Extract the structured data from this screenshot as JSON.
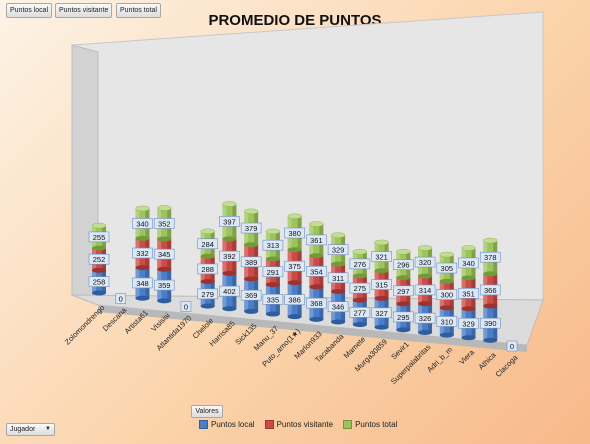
{
  "toolbar": {
    "btn_local": "Puntos local",
    "btn_visitante": "Puntos visitante",
    "btn_total": "Puntos total"
  },
  "pivot": {
    "valores_label": "Valores",
    "jugador_label": "Jugador"
  },
  "colors": {
    "local": "#4a7ec9",
    "visitante": "#cc4b47",
    "total": "#9dc45a"
  },
  "chart_data": {
    "type": "bar",
    "stacked": true,
    "style": "3d-cylinder",
    "title": "PROMEDIO DE PUNTOS",
    "xlabel": "",
    "ylabel": "",
    "legend_position": "bottom",
    "categories": [
      "Zolomondrengo",
      "Descana",
      "Artista61",
      "Visisisi",
      "Atlantida1970",
      "Chelole",
      "Harrisa85",
      "Sick135",
      "Manu_37",
      "Puto_amo(1★)",
      "Marlon933",
      "Tacabanda",
      "Mamete",
      "Murga30859",
      "Sevir1",
      "Superpalabritas",
      "Adri_b_m",
      "Viera",
      "Athica",
      "Clacoga"
    ],
    "series": [
      {
        "name": "Puntos local",
        "values": [
          258,
          0,
          348,
          359,
          0,
          279,
          402,
          369,
          335,
          386,
          368,
          346,
          277,
          327,
          295,
          326,
          310,
          329,
          390,
          0
        ]
      },
      {
        "name": "Puntos visitante",
        "values": [
          252,
          0,
          332,
          345,
          0,
          288,
          392,
          389,
          291,
          375,
          354,
          311,
          275,
          315,
          297,
          314,
          300,
          351,
          366,
          0
        ]
      },
      {
        "name": "Puntos total",
        "values": [
          255,
          0,
          340,
          352,
          0,
          284,
          397,
          379,
          313,
          380,
          361,
          329,
          276,
          321,
          296,
          320,
          305,
          340,
          378,
          0
        ]
      }
    ]
  }
}
